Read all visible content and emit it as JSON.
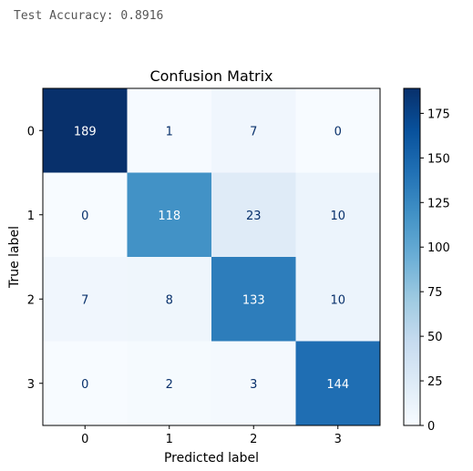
{
  "console": {
    "output": "Test Accuracy: 0.8916"
  },
  "chart_data": {
    "type": "heatmap",
    "title": "Confusion Matrix",
    "xlabel": "Predicted label",
    "ylabel": "True label",
    "x_ticks": [
      "0",
      "1",
      "2",
      "3"
    ],
    "y_ticks": [
      "0",
      "1",
      "2",
      "3"
    ],
    "matrix": [
      [
        189,
        1,
        7,
        0
      ],
      [
        0,
        118,
        23,
        10
      ],
      [
        7,
        8,
        133,
        10
      ],
      [
        0,
        2,
        3,
        144
      ]
    ],
    "colormap": "Blues",
    "colorbar": {
      "range": [
        0,
        189
      ],
      "ticks": [
        0,
        25,
        50,
        75,
        100,
        125,
        150,
        175
      ]
    }
  }
}
